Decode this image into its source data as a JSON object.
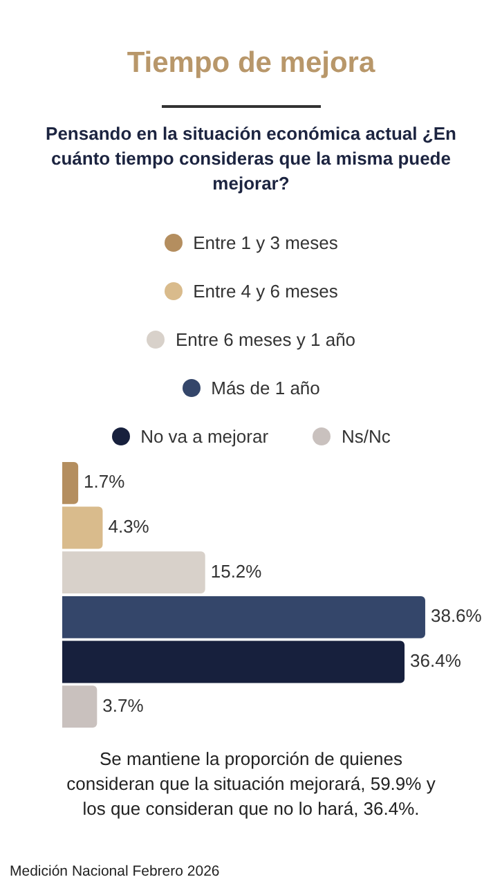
{
  "chart_data": {
    "type": "bar",
    "orientation": "horizontal",
    "title": "Tiempo de mejora",
    "subtitle": "Pensando en la situación económica actual ¿En cuánto tiempo consideras que la misma puede mejorar?",
    "categories": [
      null
    ],
    "series": [
      {
        "name": "Entre 1 y 3 meses",
        "color": "#b48e5f",
        "values": [
          1.7
        ],
        "value_labels": [
          "1.7%"
        ]
      },
      {
        "name": "Entre 4 y 6 meses",
        "color": "#d9bb8c",
        "values": [
          4.3
        ],
        "value_labels": [
          "4.3%"
        ]
      },
      {
        "name": "Entre 6 meses y 1 año",
        "color": "#d8d1ca",
        "values": [
          15.2
        ],
        "value_labels": [
          "15.2%"
        ]
      },
      {
        "name": "Más de 1 año",
        "color": "#34466a",
        "values": [
          38.6
        ],
        "value_labels": [
          "38.6%"
        ]
      },
      {
        "name": "No va a mejorar",
        "color": "#17203d",
        "values": [
          36.4
        ],
        "value_labels": [
          "36.4%"
        ]
      },
      {
        "name": "Ns/Nc",
        "color": "#c9c1be",
        "values": [
          3.7
        ],
        "value_labels": [
          "3.7%"
        ]
      }
    ],
    "tick_labels": false,
    "legend": "top",
    "annotations": [
      "Se mantiene la proporción de quienes consideran que la situación mejorará, 59.9% y los que consideran que no lo hará, 36.4%.",
      "Medición Nacional Febrero 2026"
    ]
  }
}
